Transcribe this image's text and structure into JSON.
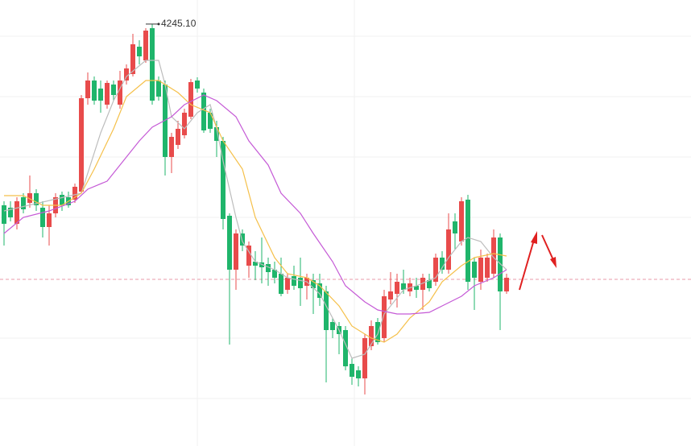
{
  "chart_data": {
    "type": "candlestick",
    "max_label": "4245.10",
    "ylim": [
      3721,
      4275
    ],
    "up_color": "#e84b4b",
    "down_color": "#1fb56b",
    "price_line": 3928,
    "price_line_color": "#e89aa8",
    "open": [
      4020,
      4017,
      3997,
      4030,
      4023,
      4035,
      4017,
      3993,
      4010,
      4033,
      4030,
      4027,
      4037,
      4153,
      4175,
      4165,
      4145,
      4170,
      4145,
      4175,
      4183,
      4217,
      4200,
      4240,
      4175,
      4170,
      4080,
      4095,
      4107,
      4130,
      4175,
      4160,
      4135,
      4117,
      4100,
      4007,
      3940,
      3985,
      3945,
      3950,
      3949,
      3947,
      3940,
      3935,
      3915,
      3932,
      3930,
      3920,
      3927,
      3923,
      3913,
      3875,
      3870,
      3865,
      3823,
      3815,
      3805,
      3845,
      3875,
      3855,
      3903,
      3910,
      3923,
      3913,
      3920,
      3915,
      3927,
      3925,
      3955,
      3940,
      4000,
      3975,
      4027,
      3950,
      3925,
      3930,
      3935,
      3980,
      3913
    ],
    "high": [
      4025,
      4025,
      4030,
      4035,
      4057,
      4040,
      4025,
      4020,
      4035,
      4037,
      4037,
      4047,
      4157,
      4185,
      4180,
      4175,
      4175,
      4175,
      4187,
      4195,
      4233,
      4225,
      4240,
      4245.1,
      4180,
      4175,
      4110,
      4125,
      4140,
      4177,
      4179,
      4165,
      4140,
      4125,
      4105,
      4010,
      3990,
      3990,
      3975,
      3963,
      3980,
      3955,
      3950,
      3955,
      3935,
      3945,
      3955,
      3935,
      3935,
      3935,
      3920,
      3880,
      3875,
      3870,
      3830,
      3820,
      3860,
      3877,
      3880,
      3915,
      3937,
      3935,
      3940,
      3930,
      3930,
      3935,
      3935,
      3960,
      3963,
      4010,
      4010,
      4030,
      4033,
      3955,
      3965,
      3960,
      3990,
      3985,
      3935
    ],
    "low": [
      3970,
      4000,
      3990,
      4010,
      4017,
      4013,
      3980,
      3970,
      4005,
      4013,
      4017,
      4023,
      4035,
      4145,
      4145,
      4135,
      4140,
      4150,
      4140,
      4170,
      4180,
      4195,
      4197,
      4145,
      4150,
      4057,
      4060,
      4090,
      4103,
      4127,
      4160,
      4110,
      4110,
      4080,
      3990,
      3847,
      3915,
      3963,
      3930,
      3927,
      3923,
      3920,
      3923,
      3907,
      3910,
      3915,
      3895,
      3903,
      3885,
      3895,
      3800,
      3855,
      3835,
      3815,
      3797,
      3795,
      3785,
      3840,
      3847,
      3850,
      3897,
      3893,
      3910,
      3907,
      3905,
      3890,
      3913,
      3920,
      3935,
      3935,
      3965,
      3970,
      3915,
      3890,
      3915,
      3925,
      3930,
      3865,
      3910
    ],
    "close": [
      3997,
      4005,
      4025,
      4015,
      4035,
      4020,
      3993,
      4010,
      4030,
      4020,
      4020,
      4043,
      4153,
      4175,
      4150,
      4150,
      4172,
      4157,
      4175,
      4190,
      4220,
      4205,
      4237,
      4150,
      4155,
      4080,
      4105,
      4115,
      4135,
      4173,
      4165,
      4113,
      4115,
      4100,
      4003,
      3940,
      3985,
      3970,
      3970,
      3945,
      3943,
      3937,
      3930,
      3910,
      3930,
      3920,
      3917,
      3930,
      3917,
      3905,
      3865,
      3865,
      3860,
      3820,
      3807,
      3805,
      3855,
      3870,
      3850,
      3907,
      3913,
      3925,
      3915,
      3923,
      3915,
      3930,
      3917,
      3955,
      3940,
      3990,
      3985,
      4025,
      3925,
      3930,
      3955,
      3955,
      3980,
      3913,
      3930
    ],
    "lines": [
      {
        "color": "#bdbdbd",
        "x": [
          0,
          12,
          15,
          17,
          19,
          22,
          24,
          25,
          26,
          28,
          30,
          32,
          33,
          34,
          36,
          37,
          39,
          42,
          44,
          47,
          49,
          52,
          54,
          56,
          58,
          59,
          62,
          64,
          67,
          69,
          71,
          72,
          74,
          76,
          78
        ],
        "values": [
          4013,
          4035,
          4110,
          4150,
          4180,
          4200,
          4200,
          4170,
          4130,
          4115,
          4135,
          4145,
          4115,
          4075,
          4005,
          3975,
          3950,
          3940,
          3930,
          3925,
          3910,
          3865,
          3830,
          3835,
          3860,
          3885,
          3915,
          3920,
          3930,
          3955,
          3975,
          3980,
          3975,
          3955,
          3940
        ]
      },
      {
        "color": "#f5c04a",
        "x": [
          0,
          3,
          6,
          9,
          12,
          14,
          17,
          19,
          22,
          24,
          27,
          29,
          32,
          34,
          37,
          39,
          42,
          44,
          47,
          49,
          52,
          54,
          57,
          59,
          61,
          63,
          66,
          68,
          71,
          73,
          76,
          78
        ],
        "values": [
          4032,
          4032,
          4020,
          4020,
          4035,
          4065,
          4115,
          4155,
          4175,
          4175,
          4160,
          4145,
          4135,
          4100,
          4065,
          4005,
          3955,
          3935,
          3930,
          3920,
          3895,
          3870,
          3855,
          3850,
          3860,
          3880,
          3900,
          3925,
          3945,
          3955,
          3960,
          3957
        ]
      },
      {
        "color": "#c55ad6",
        "x": [
          0,
          3,
          7,
          11,
          13,
          16,
          18,
          21,
          23,
          26,
          28,
          31,
          33,
          36,
          38,
          41,
          43,
          46,
          48,
          51,
          53,
          56,
          58,
          61,
          63,
          66,
          68,
          71,
          73,
          76,
          78
        ],
        "values": [
          3985,
          4005,
          4013,
          4025,
          4040,
          4050,
          4070,
          4100,
          4117,
          4130,
          4145,
          4157,
          4150,
          4130,
          4100,
          4070,
          4035,
          4010,
          3985,
          3950,
          3920,
          3900,
          3890,
          3885,
          3885,
          3887,
          3895,
          3907,
          3920,
          3930,
          3940
        ]
      }
    ]
  }
}
